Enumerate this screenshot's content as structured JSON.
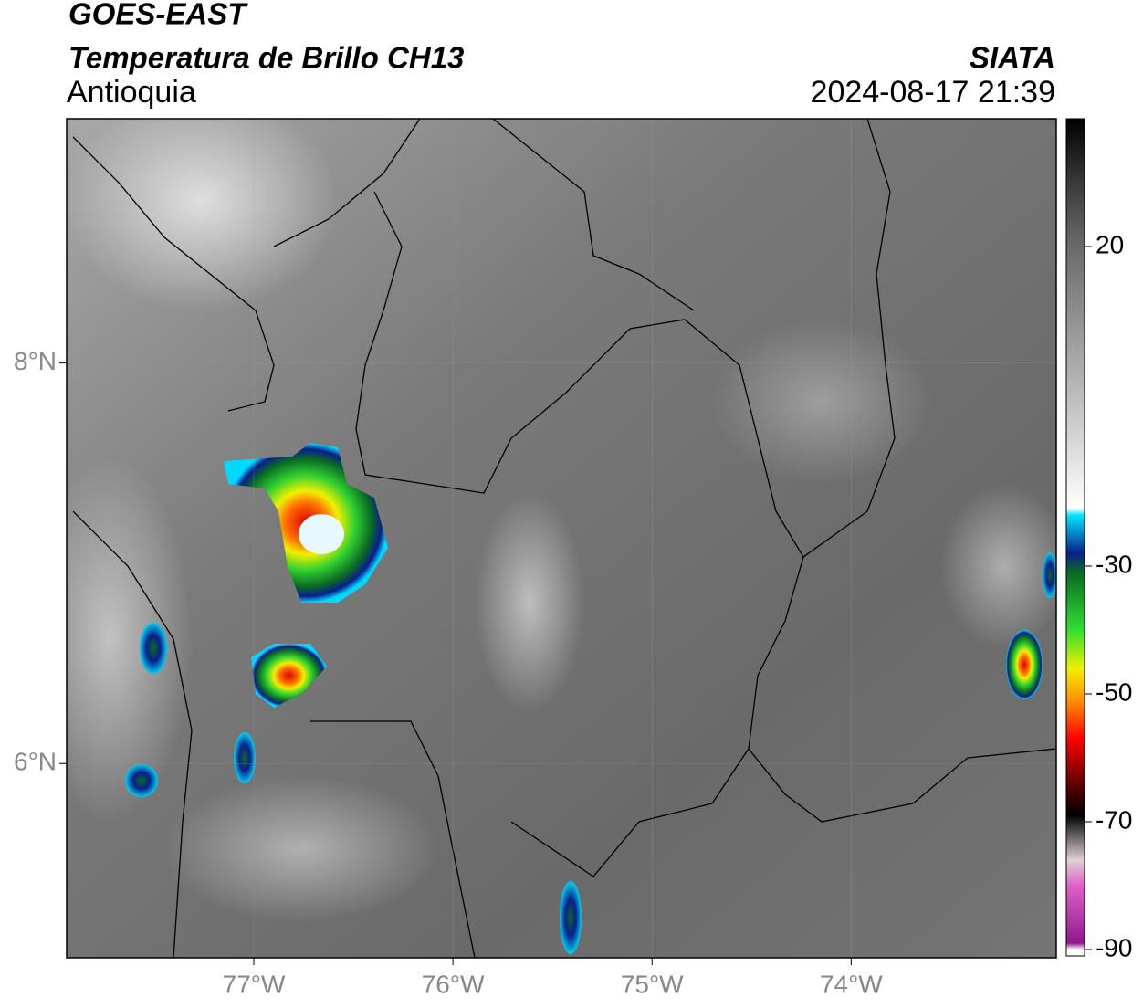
{
  "header": {
    "title": "GOES-EAST",
    "subtitle": "Temperatura de Brillo CH13",
    "region": "Antioquia",
    "source": "SIATA",
    "timestamp": "2024-08-17 21:39"
  },
  "map": {
    "xlim": [
      -77.94,
      -72.97
    ],
    "ylim": [
      5.03,
      9.22
    ],
    "xticks": [
      {
        "value": -77,
        "label": "77°W"
      },
      {
        "value": -76,
        "label": "76°W"
      },
      {
        "value": -75,
        "label": "75°W"
      },
      {
        "value": -74,
        "label": "74°W"
      }
    ],
    "yticks": [
      {
        "value": 8,
        "label": "8°N"
      },
      {
        "value": 6,
        "label": "6°N"
      }
    ],
    "grid": true
  },
  "colorbar": {
    "lim": [
      -91,
      40
    ],
    "ticks": [
      20,
      -30,
      -50,
      -70,
      -90
    ],
    "stops": [
      {
        "value": 40,
        "color": "#000000"
      },
      {
        "value": 30,
        "color": "#3a3a3a"
      },
      {
        "value": 20,
        "color": "#6a6a6a"
      },
      {
        "value": 0,
        "color": "#b0b0b0"
      },
      {
        "value": -21,
        "color": "#ffffff"
      },
      {
        "value": -22,
        "color": "#00e8ff"
      },
      {
        "value": -28,
        "color": "#0a1e8c"
      },
      {
        "value": -31,
        "color": "#0a6a25"
      },
      {
        "value": -40,
        "color": "#30e030"
      },
      {
        "value": -46,
        "color": "#f0f000"
      },
      {
        "value": -51,
        "color": "#ff9000"
      },
      {
        "value": -57,
        "color": "#ff0000"
      },
      {
        "value": -64,
        "color": "#600000"
      },
      {
        "value": -69,
        "color": "#000000"
      },
      {
        "value": -76,
        "color": "#e0d0d8"
      },
      {
        "value": -80,
        "color": "#e060c8"
      },
      {
        "value": -89,
        "color": "#901890"
      },
      {
        "value": -90,
        "color": "#ffffff"
      }
    ]
  }
}
